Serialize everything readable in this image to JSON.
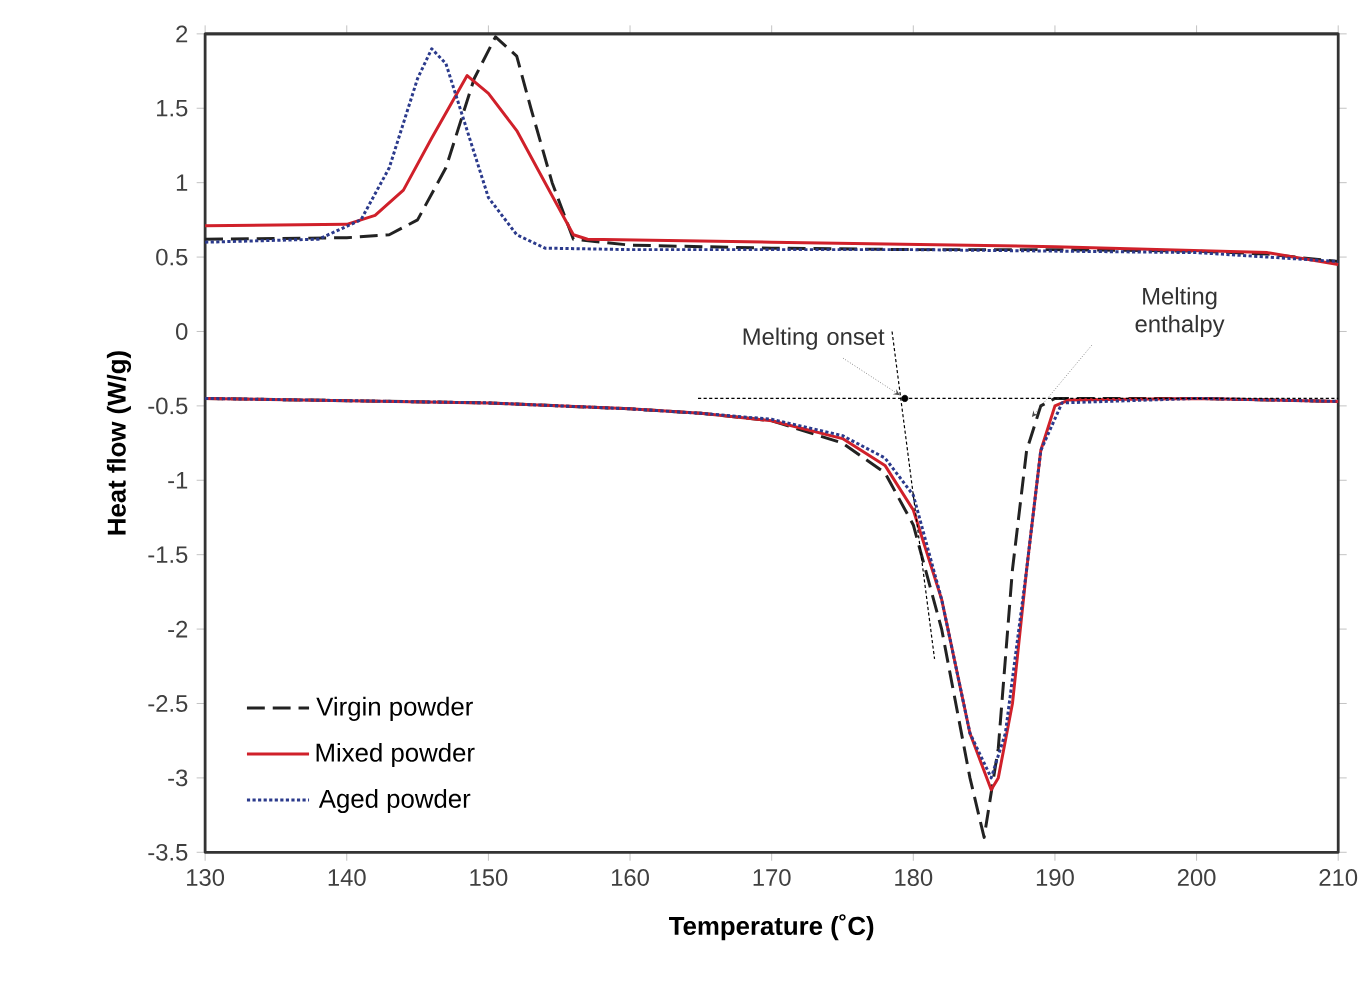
{
  "chart_data": {
    "type": "line",
    "xlabel": "Temperature (˚C)",
    "ylabel": "Heat flow (W/g)",
    "xlim": [
      130,
      210
    ],
    "xticks": [
      130,
      140,
      150,
      160,
      170,
      180,
      190,
      200,
      210
    ],
    "ylim": [
      -3.5,
      2
    ],
    "yticks": [
      -3.5,
      -3,
      -2.5,
      -2,
      -1.5,
      -1,
      -0.5,
      0,
      0.5,
      1,
      1.5,
      2
    ],
    "grid": false,
    "legend": "bottom left",
    "annotations": [
      {
        "text": "Melting onset",
        "x": 179.4,
        "y": -0.45
      },
      "Melting enthalpy"
    ],
    "series": [
      {
        "name": "Virgin powder",
        "color": "#222222",
        "line_style": "dashed",
        "x": [
          130,
          140,
          143,
          145,
          147,
          149,
          150.5,
          152,
          153,
          154.5,
          156,
          160,
          170,
          180,
          190,
          200,
          205,
          210
        ],
        "values": [
          0.62,
          0.63,
          0.65,
          0.75,
          1.1,
          1.7,
          1.98,
          1.85,
          1.5,
          1.0,
          0.62,
          0.58,
          0.56,
          0.55,
          0.55,
          0.54,
          0.52,
          0.47
        ]
      },
      {
        "color": "#222222",
        "line_style": "dashed",
        "x": [
          130,
          150,
          160,
          165,
          170,
          175,
          178,
          180,
          182,
          184,
          185,
          186,
          187,
          188,
          189,
          190,
          200,
          210
        ],
        "values": [
          -0.45,
          -0.48,
          -0.52,
          -0.55,
          -0.6,
          -0.75,
          -0.95,
          -1.3,
          -2.0,
          -3.0,
          -3.4,
          -2.8,
          -1.6,
          -0.8,
          -0.5,
          -0.45,
          -0.45,
          -0.47
        ]
      },
      {
        "name": "Mixed powder",
        "color": "#d0202a",
        "line_style": "solid",
        "x": [
          130,
          140,
          142,
          144,
          146,
          148.5,
          150,
          152,
          154,
          156,
          157,
          170,
          190,
          205,
          210
        ],
        "values": [
          0.71,
          0.72,
          0.78,
          0.95,
          1.3,
          1.72,
          1.6,
          1.35,
          1.0,
          0.65,
          0.62,
          0.6,
          0.57,
          0.53,
          0.45
        ]
      },
      {
        "color": "#d0202a",
        "line_style": "solid",
        "x": [
          130,
          150,
          160,
          165,
          170,
          175,
          178,
          180,
          182,
          184,
          185.5,
          186,
          187,
          188,
          189,
          190,
          191,
          200,
          210
        ],
        "values": [
          -0.45,
          -0.48,
          -0.52,
          -0.55,
          -0.6,
          -0.72,
          -0.9,
          -1.2,
          -1.8,
          -2.7,
          -3.08,
          -3.0,
          -2.5,
          -1.6,
          -0.8,
          -0.5,
          -0.46,
          -0.45,
          -0.47
        ]
      },
      {
        "name": "Aged powder",
        "color": "#2b3a8c",
        "line_style": "dotted",
        "x": [
          130,
          138,
          141,
          143,
          145,
          146,
          147,
          148,
          150,
          152,
          154,
          160,
          180,
          200,
          210
        ],
        "values": [
          0.6,
          0.62,
          0.75,
          1.1,
          1.7,
          1.9,
          1.8,
          1.5,
          0.9,
          0.65,
          0.56,
          0.55,
          0.55,
          0.53,
          0.47
        ]
      },
      {
        "color": "#2b3a8c",
        "line_style": "dotted",
        "x": [
          130,
          150,
          160,
          165,
          170,
          175,
          178,
          180,
          182,
          184,
          185.5,
          186.5,
          188,
          189,
          190.5,
          200,
          210
        ],
        "values": [
          -0.45,
          -0.48,
          -0.52,
          -0.55,
          -0.59,
          -0.7,
          -0.85,
          -1.1,
          -1.8,
          -2.7,
          -3.0,
          -2.7,
          -1.6,
          -0.8,
          -0.48,
          -0.45,
          -0.47
        ]
      },
      {
        "color": "#000000",
        "line_style": "dotted",
        "x": [
          164.8,
          210
        ],
        "values": [
          -0.45,
          -0.45
        ]
      },
      {
        "color": "#000000",
        "line_style": "dotted",
        "x": [
          178.5,
          181.5
        ],
        "values": [
          0.0,
          -2.2
        ]
      },
      {
        "type": "scatter",
        "color": "#000000",
        "marker": "circle",
        "x": [
          179.4
        ],
        "values": [
          -0.45
        ]
      }
    ]
  }
}
